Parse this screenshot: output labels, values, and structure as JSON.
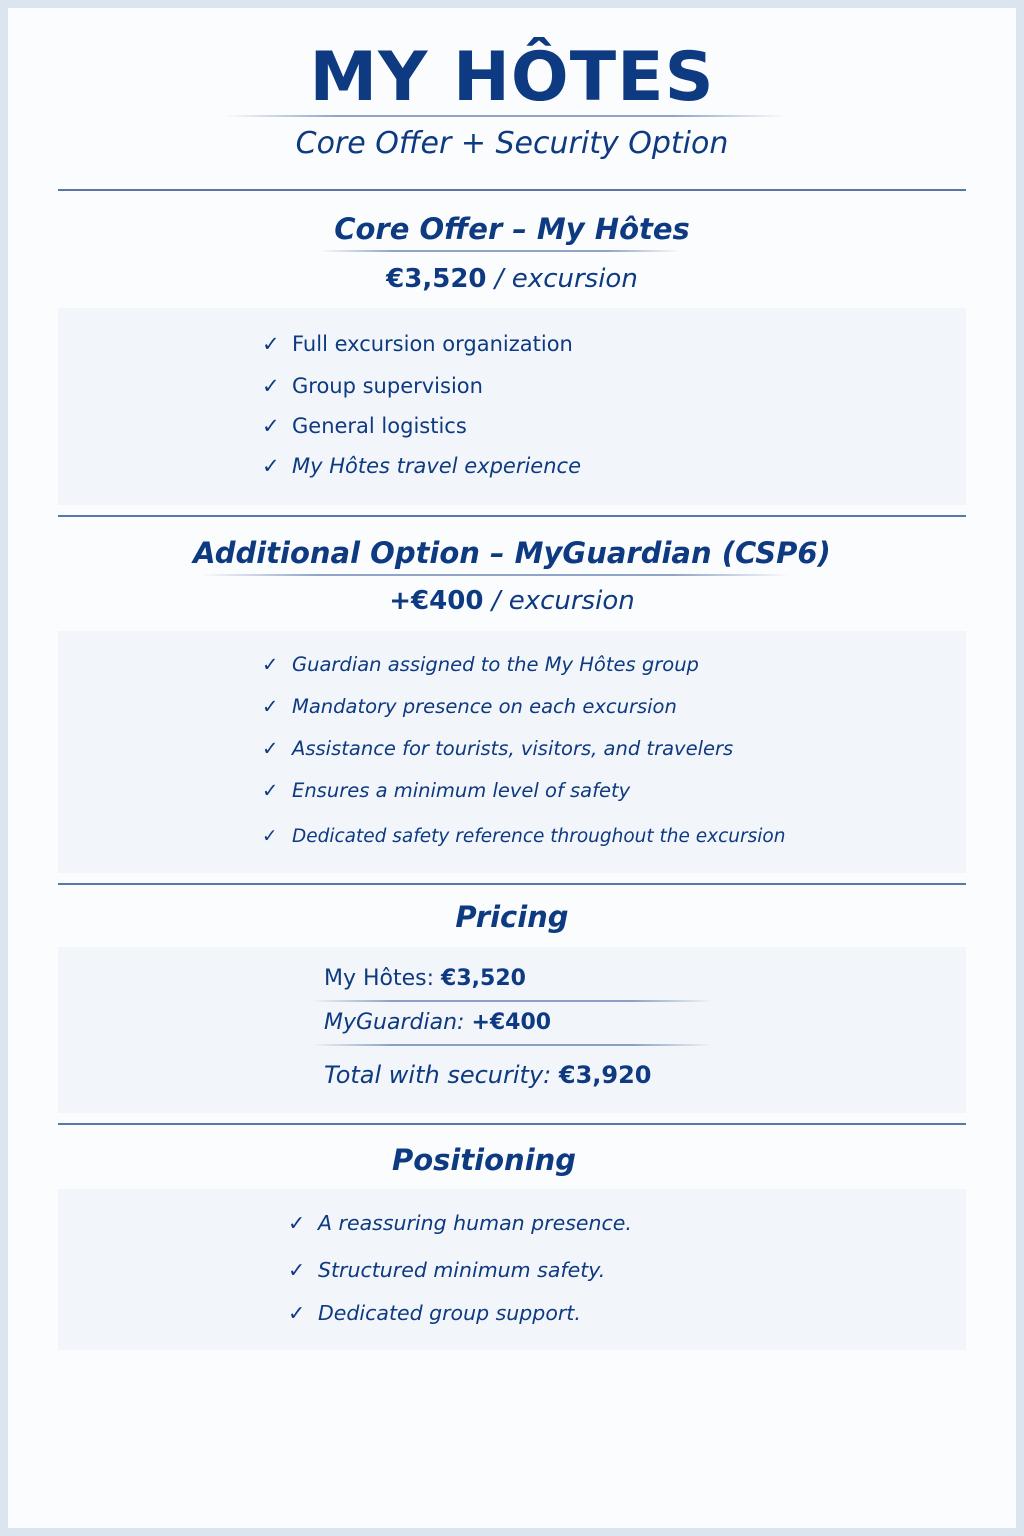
{
  "header": {
    "title": "MY HÔTES",
    "subtitle": "Core Offer + Security Option"
  },
  "core": {
    "heading": "Core Offer – My Hôtes",
    "price": "€3,520",
    "unit": "/ excursion",
    "items": [
      "Full excursion organization",
      "Group supervision",
      "General logistics",
      "My Hôtes travel experience"
    ]
  },
  "option": {
    "heading": "Additional Option – MyGuardian (CSP6)",
    "price": "+€400",
    "unit": "/ excursion",
    "items": [
      "Guardian assigned to the My Hôtes group",
      "Mandatory presence on each excursion",
      "Assistance for tourists, visitors, and travelers",
      "Ensures a minimum level of safety",
      "Dedicated safety reference throughout the excursion"
    ]
  },
  "pricing": {
    "heading": "Pricing",
    "rows": [
      {
        "label": "My Hôtes:",
        "value": "€3,520"
      },
      {
        "label": "MyGuardian:",
        "value": "+€400"
      },
      {
        "label": "Total with security:",
        "value": "€3,920"
      }
    ]
  },
  "positioning": {
    "heading": "Positioning",
    "items": [
      "A reassuring human presence.",
      "Structured minimum safety.",
      "Dedicated group support."
    ]
  },
  "icons": {
    "check": "check-icon"
  },
  "colors": {
    "primary": "#0d3a80",
    "box": "#f2f5fa",
    "border": "#dbe5f0"
  }
}
